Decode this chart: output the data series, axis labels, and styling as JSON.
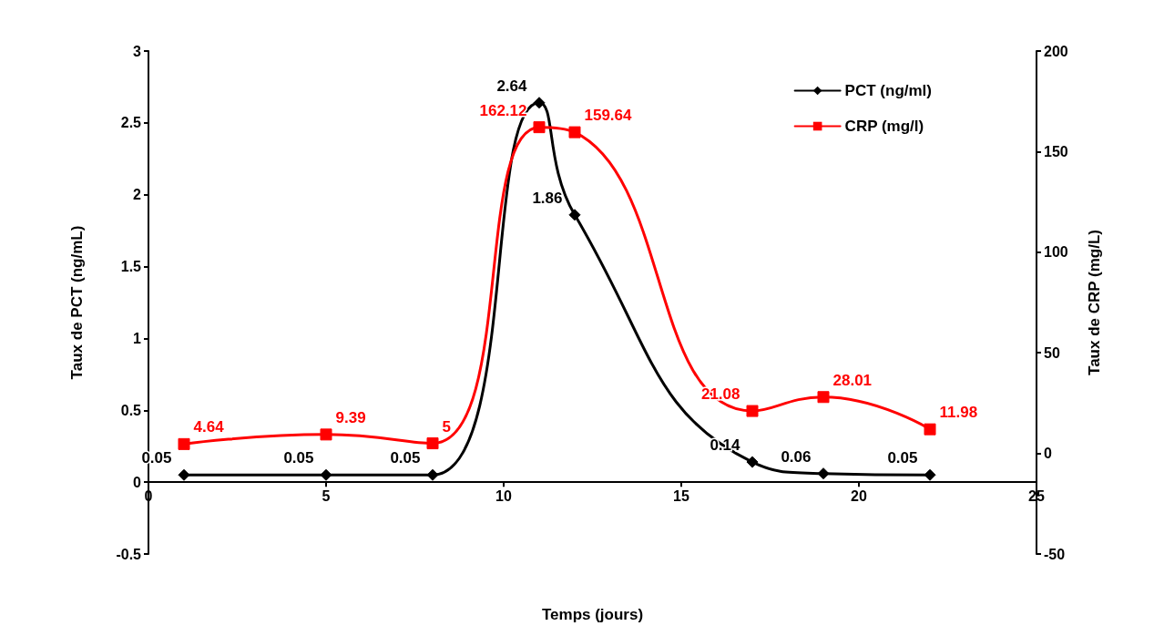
{
  "chart_data": {
    "type": "line",
    "xlabel": "Temps (jours)",
    "ylabel": "Taux de PCT (ng/mL)",
    "y2label": "Taux de CRP (mg/L)",
    "x": [
      1,
      5,
      8,
      11,
      12,
      17,
      19,
      22
    ],
    "series": [
      {
        "name": "PCT (ng/ml)",
        "color": "#000000",
        "marker": "diamond",
        "values": [
          0.05,
          0.05,
          0.05,
          2.64,
          1.86,
          0.14,
          0.06,
          0.05
        ]
      },
      {
        "name": "CRP (mg/l)",
        "color": "#ff0000",
        "marker": "square",
        "axis": "y2",
        "values": [
          4.64,
          9.39,
          5,
          162.12,
          159.64,
          21.08,
          28.01,
          11.98
        ]
      }
    ],
    "xlim": [
      0,
      25
    ],
    "xticks": [
      0,
      5,
      10,
      15,
      20,
      25
    ],
    "ylim": [
      -0.5,
      3
    ],
    "yticks": [
      -0.5,
      0,
      0.5,
      1,
      1.5,
      2,
      2.5,
      3
    ],
    "y2lim": [
      -50,
      200
    ],
    "y2ticks": [
      -50,
      0,
      50,
      100,
      150,
      200
    ],
    "data_labels": true,
    "legend": "top right",
    "grid": false,
    "line_style": "solid"
  }
}
